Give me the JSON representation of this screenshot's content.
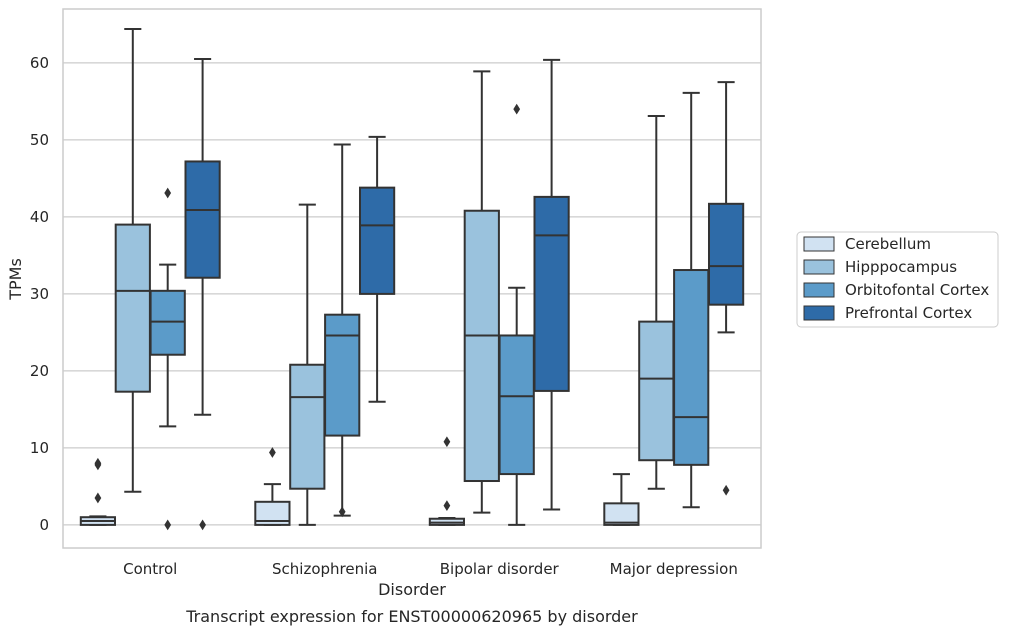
{
  "caption": "Transcript expression for ENST00000620965 by disorder",
  "chart_data": {
    "type": "box",
    "xlabel": "Disorder",
    "ylabel": "TPMs",
    "ylim": [
      -3,
      67
    ],
    "yticks": [
      0,
      10,
      20,
      30,
      40,
      50,
      60
    ],
    "grid": "horizontal",
    "legend_position": "right",
    "categories": [
      "Control",
      "Schizophrenia",
      "Bipolar disorder",
      "Major depression"
    ],
    "series": [
      {
        "name": "Cerebellum",
        "color": "#d1e2f2",
        "boxes": [
          {
            "whislo": 0,
            "q1": 0,
            "med": 0.5,
            "q3": 1.0,
            "whishi": 1.1,
            "fliers": [
              3.5,
              7.8,
              8.0
            ]
          },
          {
            "whislo": 0,
            "q1": 0,
            "med": 0.5,
            "q3": 3.0,
            "whishi": 5.3,
            "fliers": [
              9.4
            ]
          },
          {
            "whislo": 0,
            "q1": 0,
            "med": 0.3,
            "q3": 0.8,
            "whishi": 0.9,
            "fliers": [
              2.5,
              10.8
            ]
          },
          {
            "whislo": 0,
            "q1": 0,
            "med": 0.3,
            "q3": 2.8,
            "whishi": 6.6,
            "fliers": []
          }
        ]
      },
      {
        "name": "Hipppocampus",
        "color": "#9ac2dd",
        "boxes": [
          {
            "whislo": 4.3,
            "q1": 17.3,
            "med": 30.4,
            "q3": 39.0,
            "whishi": 64.4,
            "fliers": []
          },
          {
            "whislo": 0,
            "q1": 4.7,
            "med": 16.6,
            "q3": 20.8,
            "whishi": 41.6,
            "fliers": []
          },
          {
            "whislo": 1.6,
            "q1": 5.7,
            "med": 24.6,
            "q3": 40.8,
            "whishi": 58.9,
            "fliers": []
          },
          {
            "whislo": 4.7,
            "q1": 8.4,
            "med": 19.0,
            "q3": 26.4,
            "whishi": 53.1,
            "fliers": []
          }
        ]
      },
      {
        "name": "Orbitofontal Cortex",
        "color": "#5b9bc9",
        "boxes": [
          {
            "whislo": 12.8,
            "q1": 22.1,
            "med": 26.4,
            "q3": 30.4,
            "whishi": 33.8,
            "fliers": [
              0,
              43.1
            ]
          },
          {
            "whislo": 1.2,
            "q1": 11.6,
            "med": 24.6,
            "q3": 27.3,
            "whishi": 49.4,
            "fliers": [
              1.7
            ]
          },
          {
            "whislo": 0,
            "q1": 6.6,
            "med": 16.7,
            "q3": 24.6,
            "whishi": 30.8,
            "fliers": [
              54.0
            ]
          },
          {
            "whislo": 2.3,
            "q1": 7.8,
            "med": 14.0,
            "q3": 33.1,
            "whishi": 56.1,
            "fliers": []
          }
        ]
      },
      {
        "name": "Prefrontal Cortex",
        "color": "#2e6ba8",
        "boxes": [
          {
            "whislo": 14.3,
            "q1": 32.1,
            "med": 40.9,
            "q3": 47.2,
            "whishi": 60.5,
            "fliers": [
              0
            ]
          },
          {
            "whislo": 16.0,
            "q1": 30.0,
            "med": 38.9,
            "q3": 43.8,
            "whishi": 50.4,
            "fliers": []
          },
          {
            "whislo": 2.0,
            "q1": 17.4,
            "med": 37.6,
            "q3": 42.6,
            "whishi": 60.4,
            "fliers": []
          },
          {
            "whislo": 25.0,
            "q1": 28.6,
            "med": 33.6,
            "q3": 41.7,
            "whishi": 57.5,
            "fliers": [
              4.5
            ]
          }
        ]
      }
    ]
  }
}
